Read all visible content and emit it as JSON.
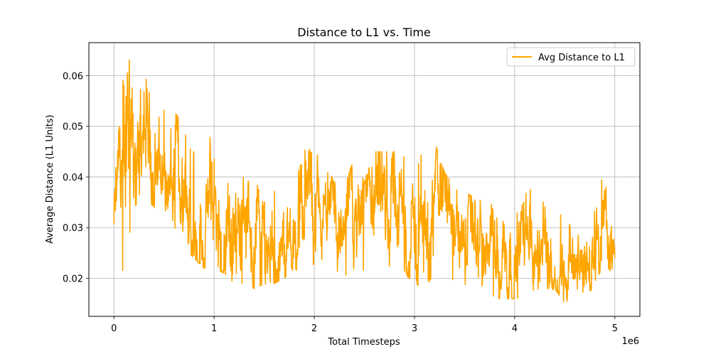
{
  "chart_data": {
    "type": "line",
    "title": "Distance to L1 vs. Time",
    "xlabel": "Total Timesteps",
    "ylabel": "Average Distance (L1 Units)",
    "x_offset_label": "1e6",
    "xlim": [
      -0.25,
      5.25
    ],
    "ylim": [
      0.0125,
      0.0665
    ],
    "x_ticks": [
      0,
      1,
      2,
      3,
      4,
      5
    ],
    "x_tick_labels": [
      "0",
      "1",
      "2",
      "3",
      "4",
      "5"
    ],
    "y_ticks": [
      0.02,
      0.03,
      0.04,
      0.05,
      0.06
    ],
    "y_tick_labels": [
      "0.02",
      "0.03",
      "0.04",
      "0.05",
      "0.06"
    ],
    "grid": true,
    "legend_position": "top-right",
    "series": [
      {
        "name": "Avg Distance to L1",
        "color": "#ffa500",
        "x": [
          0.0,
          0.1,
          0.2,
          0.3,
          0.4,
          0.5,
          0.6,
          0.7,
          0.8,
          0.9,
          1.0,
          1.1,
          1.2,
          1.3,
          1.4,
          1.5,
          1.6,
          1.7,
          1.8,
          1.9,
          2.0,
          2.1,
          2.2,
          2.3,
          2.4,
          2.5,
          2.6,
          2.7,
          2.8,
          2.9,
          3.0,
          3.1,
          3.2,
          3.3,
          3.4,
          3.5,
          3.6,
          3.7,
          3.8,
          3.9,
          4.0,
          4.1,
          4.2,
          4.3,
          4.4,
          4.5,
          4.6,
          4.7,
          4.8,
          4.9,
          5.0
        ],
        "mean": [
          0.031,
          0.04,
          0.046,
          0.047,
          0.044,
          0.042,
          0.04,
          0.037,
          0.034,
          0.033,
          0.034,
          0.033,
          0.031,
          0.03,
          0.028,
          0.029,
          0.027,
          0.025,
          0.029,
          0.031,
          0.034,
          0.032,
          0.03,
          0.028,
          0.029,
          0.03,
          0.027,
          0.029,
          0.031,
          0.028,
          0.027,
          0.028,
          0.035,
          0.031,
          0.028,
          0.026,
          0.027,
          0.025,
          0.024,
          0.026,
          0.025,
          0.026,
          0.024,
          0.024,
          0.025,
          0.024,
          0.023,
          0.024,
          0.03,
          0.029,
          0.022
        ],
        "upper": [
          0.037,
          0.063,
          0.064,
          0.063,
          0.055,
          0.054,
          0.053,
          0.05,
          0.045,
          0.049,
          0.047,
          0.046,
          0.043,
          0.041,
          0.041,
          0.045,
          0.039,
          0.037,
          0.043,
          0.046,
          0.045,
          0.043,
          0.039,
          0.038,
          0.044,
          0.039,
          0.045,
          0.045,
          0.045,
          0.046,
          0.041,
          0.047,
          0.047,
          0.041,
          0.038,
          0.037,
          0.036,
          0.035,
          0.036,
          0.037,
          0.034,
          0.037,
          0.038,
          0.036,
          0.034,
          0.033,
          0.032,
          0.034,
          0.041,
          0.039,
          0.031
        ],
        "lower": [
          0.022,
          0.02,
          0.034,
          0.036,
          0.034,
          0.032,
          0.03,
          0.026,
          0.024,
          0.022,
          0.022,
          0.021,
          0.019,
          0.019,
          0.018,
          0.018,
          0.019,
          0.02,
          0.022,
          0.02,
          0.023,
          0.021,
          0.022,
          0.02,
          0.022,
          0.021,
          0.018,
          0.02,
          0.022,
          0.021,
          0.019,
          0.018,
          0.021,
          0.02,
          0.018,
          0.014,
          0.016,
          0.017,
          0.016,
          0.016,
          0.016,
          0.016,
          0.016,
          0.017,
          0.018,
          0.015,
          0.017,
          0.017,
          0.018,
          0.018,
          0.018
        ]
      }
    ]
  }
}
